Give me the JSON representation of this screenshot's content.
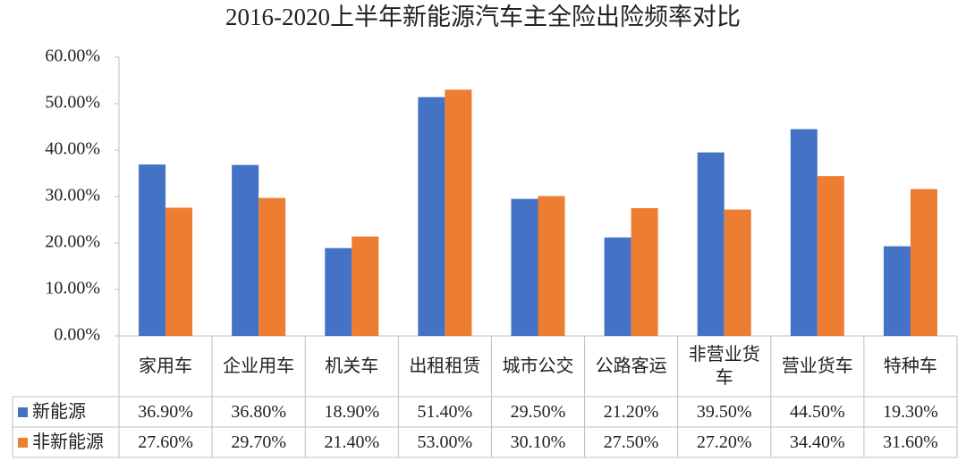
{
  "chart_data": {
    "type": "bar",
    "title": "2016-2020上半年新能源汽车主全险出险频率对比",
    "categories": [
      "家用车",
      "企业用车",
      "机关车",
      "出租租赁",
      "城市公交",
      "公路客运",
      "非营业货车",
      "营业货车",
      "特种车"
    ],
    "series": [
      {
        "name": "新能源",
        "color": "#4472c4",
        "values": [
          36.9,
          36.8,
          18.9,
          51.4,
          29.5,
          21.2,
          39.5,
          44.5,
          19.3
        ],
        "value_labels": [
          "36.90%",
          "36.80%",
          "18.90%",
          "51.40%",
          "29.50%",
          "21.20%",
          "39.50%",
          "44.50%",
          "19.30%"
        ]
      },
      {
        "name": "非新能源",
        "color": "#ed7d31",
        "values": [
          27.6,
          29.7,
          21.4,
          53.0,
          30.1,
          27.5,
          27.2,
          34.4,
          31.6
        ],
        "value_labels": [
          "27.60%",
          "29.70%",
          "21.40%",
          "53.00%",
          "30.10%",
          "27.50%",
          "27.20%",
          "34.40%",
          "31.60%"
        ]
      }
    ],
    "ylim": [
      0,
      60
    ],
    "yticks": [
      {
        "value": 0,
        "label": "0.00%"
      },
      {
        "value": 10,
        "label": "10.00%"
      },
      {
        "value": 20,
        "label": "20.00%"
      },
      {
        "value": 30,
        "label": "30.00%"
      },
      {
        "value": 40,
        "label": "40.00%"
      },
      {
        "value": 50,
        "label": "50.00%"
      },
      {
        "value": 60,
        "label": "60.00%"
      }
    ],
    "grid": false
  }
}
